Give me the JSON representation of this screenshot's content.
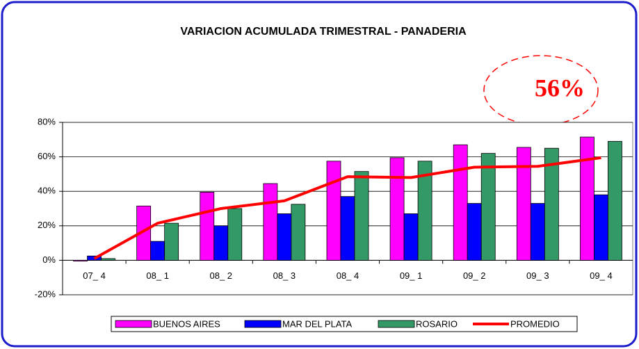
{
  "chart_data": {
    "type": "bar",
    "title": "VARIACION ACUMULADA TRIMESTRAL   -   PANADERIA",
    "annotation": "56%",
    "categories": [
      "07_ 4",
      "08_ 1",
      "08_ 2",
      "08_ 3",
      "08_ 4",
      "09_ 1",
      "09_ 2",
      "09_ 3",
      "09_ 4"
    ],
    "series": [
      {
        "name": "BUENOS AIRES",
        "color": "#ff00ff",
        "values": [
          -0.5,
          31.5,
          39.5,
          44.5,
          57.5,
          59.5,
          67,
          65.5,
          71.5
        ]
      },
      {
        "name": "MAR DEL PLATA",
        "color": "#0000ff",
        "values": [
          2.5,
          11,
          20,
          27,
          37,
          27,
          33,
          33,
          38
        ]
      },
      {
        "name": "ROSARIO",
        "color": "#339966",
        "values": [
          1,
          21.5,
          30,
          32.5,
          51.5,
          57.5,
          62,
          65,
          69
        ]
      },
      {
        "name": "PROMEDIO",
        "color": "#ff0000",
        "type": "line",
        "values": [
          1,
          21.5,
          30,
          34.5,
          48.5,
          48,
          54,
          54.5,
          59.5
        ]
      }
    ],
    "ylim": [
      -20,
      80
    ],
    "yticks": [
      {
        "value": -20,
        "label": "-20%"
      },
      {
        "value": 0,
        "label": "0%"
      },
      {
        "value": 20,
        "label": "20%"
      },
      {
        "value": 40,
        "label": "40%"
      },
      {
        "value": 60,
        "label": "60%"
      },
      {
        "value": 80,
        "label": "80%"
      }
    ],
    "grid": true,
    "legend": "bottom"
  }
}
